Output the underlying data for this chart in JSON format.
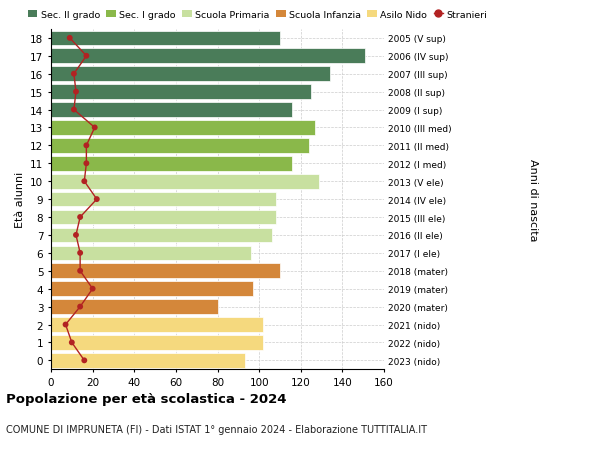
{
  "ages": [
    18,
    17,
    16,
    15,
    14,
    13,
    12,
    11,
    10,
    9,
    8,
    7,
    6,
    5,
    4,
    3,
    2,
    1,
    0
  ],
  "values": [
    110,
    151,
    134,
    125,
    116,
    127,
    124,
    116,
    129,
    108,
    108,
    106,
    96,
    110,
    97,
    80,
    102,
    102,
    93
  ],
  "stranieri": [
    9,
    17,
    11,
    12,
    11,
    21,
    17,
    17,
    16,
    22,
    14,
    12,
    14,
    14,
    20,
    14,
    7,
    10,
    16
  ],
  "bar_colors": [
    "#4a7c59",
    "#4a7c59",
    "#4a7c59",
    "#4a7c59",
    "#4a7c59",
    "#8ab84a",
    "#8ab84a",
    "#8ab84a",
    "#c8e0a0",
    "#c8e0a0",
    "#c8e0a0",
    "#c8e0a0",
    "#c8e0a0",
    "#d4873a",
    "#d4873a",
    "#d4873a",
    "#f5d97e",
    "#f5d97e",
    "#f5d97e"
  ],
  "right_labels": [
    "2005 (V sup)",
    "2006 (IV sup)",
    "2007 (III sup)",
    "2008 (II sup)",
    "2009 (I sup)",
    "2010 (III med)",
    "2011 (II med)",
    "2012 (I med)",
    "2013 (V ele)",
    "2014 (IV ele)",
    "2015 (III ele)",
    "2016 (II ele)",
    "2017 (I ele)",
    "2018 (mater)",
    "2019 (mater)",
    "2020 (mater)",
    "2021 (nido)",
    "2022 (nido)",
    "2023 (nido)"
  ],
  "legend_labels": [
    "Sec. II grado",
    "Sec. I grado",
    "Scuola Primaria",
    "Scuola Infanzia",
    "Asilo Nido",
    "Stranieri"
  ],
  "legend_colors": [
    "#4a7c59",
    "#8ab84a",
    "#c8e0a0",
    "#d4873a",
    "#f5d97e",
    "#b22222"
  ],
  "ylabel": "Età alunni",
  "ylabel2": "Anni di nascita",
  "title": "Popolazione per età scolastica - 2024",
  "subtitle": "COMUNE DI IMPRUNETA (FI) - Dati ISTAT 1° gennaio 2024 - Elaborazione TUTTITALIA.IT",
  "xlim": [
    0,
    160
  ],
  "xticks": [
    0,
    20,
    40,
    60,
    80,
    100,
    120,
    140,
    160
  ],
  "background_color": "#ffffff",
  "grid_color": "#cccccc",
  "stranieri_color": "#b22222",
  "bar_height": 0.82
}
